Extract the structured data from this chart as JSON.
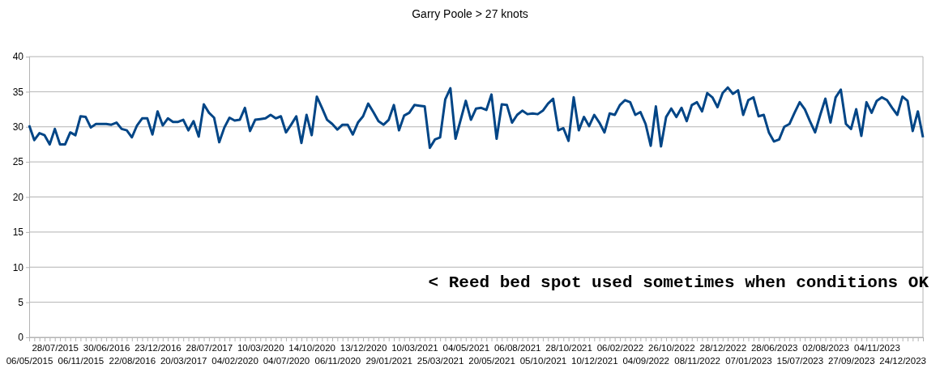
{
  "chart_data": {
    "type": "line",
    "title": "Garry Poole > 27 knots",
    "categories": [
      "06/05/2015",
      null,
      null,
      null,
      null,
      "28/07/2015",
      null,
      null,
      null,
      null,
      "06/11/2015",
      null,
      null,
      null,
      null,
      "30/06/2016",
      null,
      null,
      null,
      null,
      "22/08/2016",
      null,
      null,
      null,
      null,
      "23/12/2016",
      null,
      null,
      null,
      null,
      "20/03/2017",
      null,
      null,
      null,
      null,
      "28/07/2017",
      null,
      null,
      null,
      null,
      "04/02/2020",
      null,
      null,
      null,
      null,
      "10/03/2020",
      null,
      null,
      null,
      null,
      "04/07/2020",
      null,
      null,
      null,
      null,
      "14/10/2020",
      null,
      null,
      null,
      null,
      "06/11/2020",
      null,
      null,
      null,
      null,
      "13/12/2020",
      null,
      null,
      null,
      null,
      "29/01/2021",
      null,
      null,
      null,
      null,
      "10/03/2021",
      null,
      null,
      null,
      null,
      "25/03/2021",
      null,
      null,
      null,
      null,
      "04/05/2021",
      null,
      null,
      null,
      null,
      "20/05/2021",
      null,
      null,
      null,
      null,
      "06/08/2021",
      null,
      null,
      null,
      null,
      "05/10/2021",
      null,
      null,
      null,
      null,
      "28/10/2021",
      null,
      null,
      null,
      null,
      "10/12/2021",
      null,
      null,
      null,
      null,
      "06/02/2022",
      null,
      null,
      null,
      null,
      "04/09/2022",
      null,
      null,
      null,
      null,
      "26/10/2022",
      null,
      null,
      null,
      null,
      "08/11/2022",
      null,
      null,
      null,
      null,
      "28/12/2022",
      null,
      null,
      null,
      null,
      "07/01/2023",
      null,
      null,
      null,
      null,
      "28/06/2023",
      null,
      null,
      null,
      null,
      "15/07/2023",
      null,
      null,
      null,
      null,
      "02/08/2023",
      null,
      null,
      null,
      null,
      "27/09/2023",
      null,
      null,
      null,
      null,
      "04/11/2023",
      null,
      null,
      null,
      null,
      "24/12/2023",
      null,
      null,
      null,
      null
    ],
    "series": [
      {
        "color": "#004586",
        "values": [
          30.2,
          28.1,
          29.1,
          28.8,
          27.5,
          29.7,
          27.5,
          27.5,
          29.2,
          28.8,
          31.5,
          31.4,
          29.9,
          30.4,
          30.4,
          30.4,
          30.3,
          30.6,
          29.7,
          29.5,
          28.5,
          30.2,
          31.2,
          31.2,
          28.9,
          32.2,
          30.2,
          31.2,
          30.7,
          30.7,
          31.0,
          29.5,
          30.8,
          28.6,
          33.2,
          32.0,
          31.3,
          27.8,
          29.9,
          31.3,
          30.9,
          31.0,
          32.7,
          29.4,
          31.0,
          31.1,
          31.2,
          31.7,
          31.2,
          31.5,
          29.2,
          30.3,
          31.5,
          27.7,
          31.7,
          28.8,
          34.3,
          32.7,
          31.0,
          30.4,
          29.6,
          30.3,
          30.3,
          28.9,
          30.6,
          31.5,
          33.3,
          32.1,
          30.8,
          30.3,
          31.0,
          33.1,
          29.5,
          31.6,
          32.0,
          33.1,
          33.0,
          32.9,
          27.0,
          28.2,
          28.5,
          33.9,
          35.5,
          28.3,
          31.0,
          33.7,
          31.0,
          32.6,
          32.7,
          32.4,
          34.6,
          28.3,
          33.2,
          33.1,
          30.6,
          31.7,
          32.3,
          31.8,
          31.9,
          31.8,
          32.3,
          33.3,
          34.0,
          29.5,
          29.8,
          28.0,
          34.2,
          29.5,
          31.4,
          30.1,
          31.7,
          30.6,
          29.2,
          31.9,
          31.7,
          33.1,
          33.8,
          33.5,
          31.7,
          32.1,
          30.4,
          27.3,
          32.9,
          27.2,
          31.4,
          32.6,
          31.4,
          32.7,
          30.8,
          33.1,
          33.5,
          32.2,
          34.8,
          34.2,
          32.8,
          34.8,
          35.6,
          34.7,
          35.2,
          31.7,
          33.8,
          34.2,
          31.5,
          31.7,
          29.2,
          27.9,
          28.2,
          30.0,
          30.4,
          32.0,
          33.5,
          32.5,
          30.8,
          29.2,
          31.7,
          34.0,
          30.6,
          34.2,
          35.3,
          30.4,
          29.7,
          32.5,
          28.7,
          33.5,
          32.0,
          33.7,
          34.2,
          33.8,
          32.7,
          31.7,
          34.3,
          33.7,
          29.4,
          32.2,
          28.5
        ]
      }
    ],
    "ylim": [
      0,
      40
    ],
    "yticks": [
      0,
      5,
      10,
      15,
      20,
      25,
      30,
      35,
      40
    ],
    "grid": "y",
    "marker": "none",
    "line_style": "solid",
    "annotations": [
      "< Reed bed spot used sometimes when conditions OK"
    ]
  }
}
